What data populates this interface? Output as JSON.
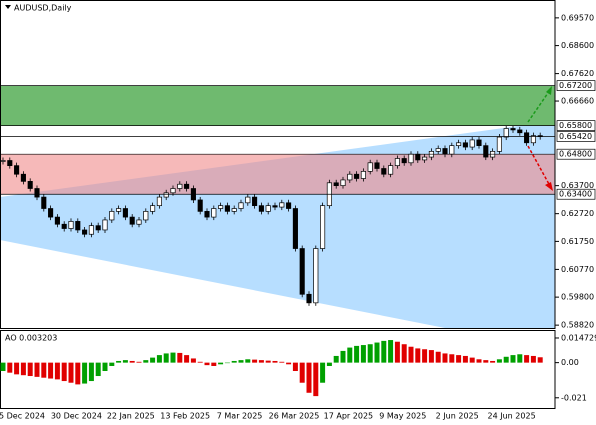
{
  "chart_data": {
    "type": "candlestick",
    "title": "AUDUSD,Daily",
    "ylim": [
      0.5872,
      0.7016
    ],
    "yticks": [
      {
        "value": 0.6957,
        "label": "0.69570"
      },
      {
        "value": 0.686,
        "label": "0.68600"
      },
      {
        "value": 0.6762,
        "label": "0.67620"
      },
      {
        "value": 0.6666,
        "label": "0.66660"
      },
      {
        "value": 0.637,
        "label": "0.63700"
      },
      {
        "value": 0.6272,
        "label": "0.62720"
      },
      {
        "value": 0.6175,
        "label": "0.61750"
      },
      {
        "value": 0.6077,
        "label": "0.60770"
      },
      {
        "value": 0.598,
        "label": "0.59800"
      },
      {
        "value": 0.5882,
        "label": "0.58820"
      }
    ],
    "levels": [
      {
        "value": 0.672,
        "label": "0.67200"
      },
      {
        "value": 0.658,
        "label": "0.65800"
      },
      {
        "value": 0.6542,
        "label": "0.65420"
      },
      {
        "value": 0.648,
        "label": "0.64800"
      },
      {
        "value": 0.634,
        "label": "0.63400"
      }
    ],
    "zones": [
      {
        "from": 0.658,
        "to": 0.672,
        "color": "#6fba6f"
      },
      {
        "from": 0.634,
        "to": 0.648,
        "color": "#f08a8a"
      }
    ],
    "x_labels": [
      "5 Dec 2024",
      "30 Dec 2024",
      "22 Jan 2025",
      "13 Feb 2025",
      "7 Mar 2025",
      "26 Mar 2025",
      "17 Apr 2025",
      "9 May 2025",
      "2 Jun 2025",
      "24 Jun 2025"
    ],
    "closes": [
      0.6458,
      0.644,
      0.641,
      0.6385,
      0.636,
      0.633,
      0.629,
      0.626,
      0.6235,
      0.622,
      0.6245,
      0.6215,
      0.62,
      0.623,
      0.6215,
      0.625,
      0.628,
      0.629,
      0.626,
      0.6235,
      0.625,
      0.628,
      0.63,
      0.633,
      0.6345,
      0.636,
      0.6375,
      0.636,
      0.632,
      0.628,
      0.626,
      0.629,
      0.63,
      0.628,
      0.629,
      0.631,
      0.633,
      0.63,
      0.628,
      0.63,
      0.6295,
      0.631,
      0.629,
      0.615,
      0.599,
      0.596,
      0.615,
      0.63,
      0.638,
      0.637,
      0.639,
      0.641,
      0.6395,
      0.642,
      0.645,
      0.643,
      0.641,
      0.644,
      0.6465,
      0.645,
      0.648,
      0.646,
      0.647,
      0.649,
      0.65,
      0.648,
      0.651,
      0.652,
      0.6505,
      0.653,
      0.651,
      0.647,
      0.649,
      0.654,
      0.657,
      0.6565,
      0.6555,
      0.652,
      0.6545,
      0.6542
    ],
    "bull_color": "#ffffff",
    "bear_color": "#000000",
    "indicator": {
      "title": "AO 0.003203",
      "ylim": [
        -0.0271,
        0.0189
      ],
      "yticks": [
        {
          "value": 0.014729,
          "label": "0.014729"
        },
        {
          "value": 0,
          "label": "0.00"
        },
        {
          "value": -0.021,
          "label": "-0.021"
        }
      ],
      "up_color": "#00a000",
      "down_color": "#e00000",
      "values": [
        -0.005,
        -0.006,
        -0.007,
        -0.0075,
        -0.008,
        -0.0085,
        -0.009,
        -0.0095,
        -0.01,
        -0.011,
        -0.012,
        -0.013,
        -0.0125,
        -0.011,
        -0.008,
        -0.005,
        -0.002,
        0.001,
        0.0015,
        0.001,
        0.0005,
        0.0015,
        0.003,
        0.0045,
        0.0055,
        0.006,
        0.0058,
        0.0045,
        0.0025,
        0.0005,
        -0.0015,
        -0.002,
        -0.001,
        0,
        0.001,
        0.0015,
        0.002,
        0.0018,
        0.0015,
        0.0012,
        0.001,
        0.0005,
        -0.001,
        -0.005,
        -0.012,
        -0.018,
        -0.02,
        -0.012,
        -0.002,
        0.004,
        0.007,
        0.009,
        0.01,
        0.0105,
        0.011,
        0.012,
        0.013,
        0.0135,
        0.0125,
        0.011,
        0.0095,
        0.0085,
        0.008,
        0.0075,
        0.0065,
        0.0055,
        0.005,
        0.0045,
        0.004,
        0.003,
        0.002,
        0.0015,
        0.001,
        0.002,
        0.0035,
        0.0045,
        0.005,
        0.0045,
        0.004,
        0.003203
      ]
    }
  }
}
